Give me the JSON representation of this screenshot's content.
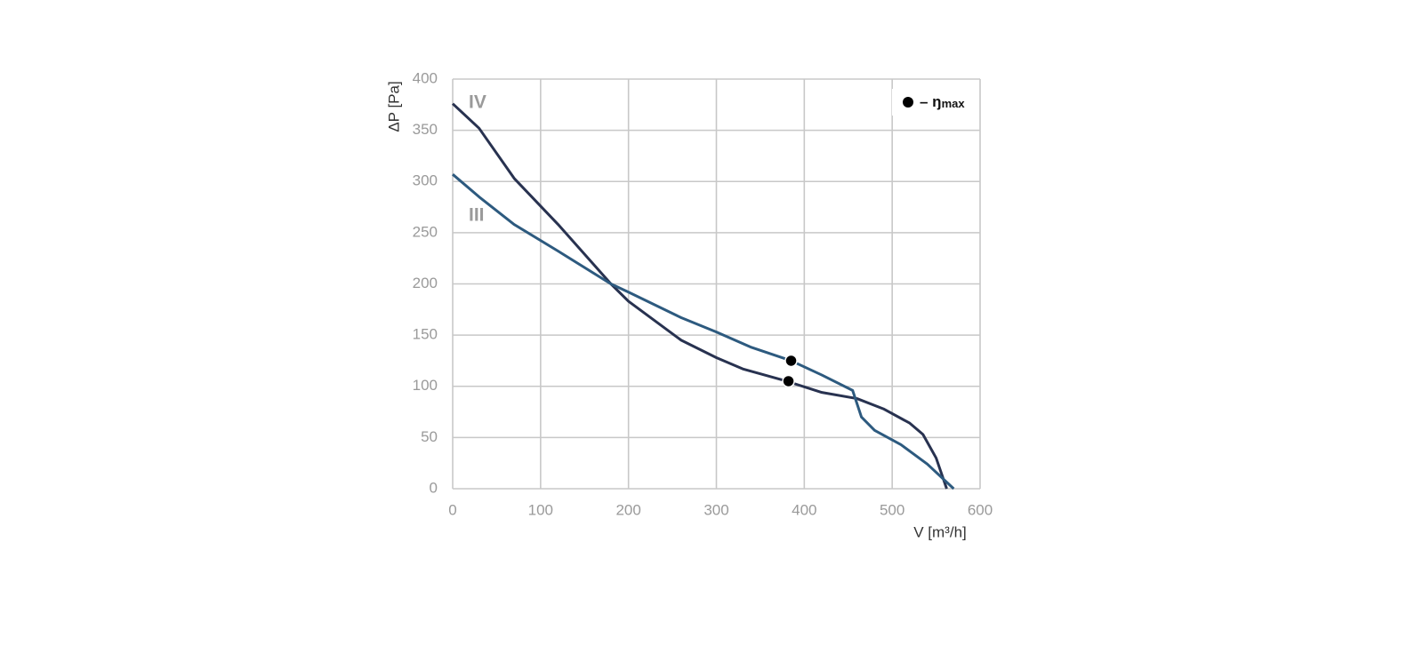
{
  "chart_data": {
    "type": "line",
    "x_label": "V [m³/h]",
    "y_label": "ΔP [Pa]",
    "xlim": [
      0,
      600
    ],
    "ylim": [
      0,
      400
    ],
    "xticks": [
      0,
      100,
      200,
      300,
      400,
      500,
      600
    ],
    "yticks": [
      0,
      50,
      100,
      150,
      200,
      250,
      300,
      350,
      400
    ],
    "grid": true,
    "series": [
      {
        "name": "IV",
        "color": "#283250",
        "x": [
          0,
          30,
          70,
          120,
          180,
          200,
          260,
          300,
          330,
          380,
          420,
          460,
          490,
          520,
          535,
          550,
          562
        ],
        "values": [
          376,
          352,
          303,
          258,
          200,
          183,
          145,
          128,
          117,
          105,
          94,
          88,
          78,
          64,
          53,
          30,
          0
        ]
      },
      {
        "name": "III",
        "color": "#2d5a7f",
        "x": [
          0,
          30,
          70,
          120,
          180,
          200,
          260,
          300,
          340,
          385,
          420,
          455,
          465,
          480,
          510,
          540,
          570
        ],
        "values": [
          307,
          285,
          258,
          232,
          200,
          192,
          167,
          153,
          138,
          125,
          111,
          96,
          70,
          57,
          43,
          24,
          0
        ]
      }
    ],
    "eta_max": {
      "label": "– ŋ",
      "subscript": "max",
      "color": "#000000",
      "points": [
        {
          "x": 382,
          "y": 105
        },
        {
          "x": 385,
          "y": 125
        }
      ]
    }
  }
}
